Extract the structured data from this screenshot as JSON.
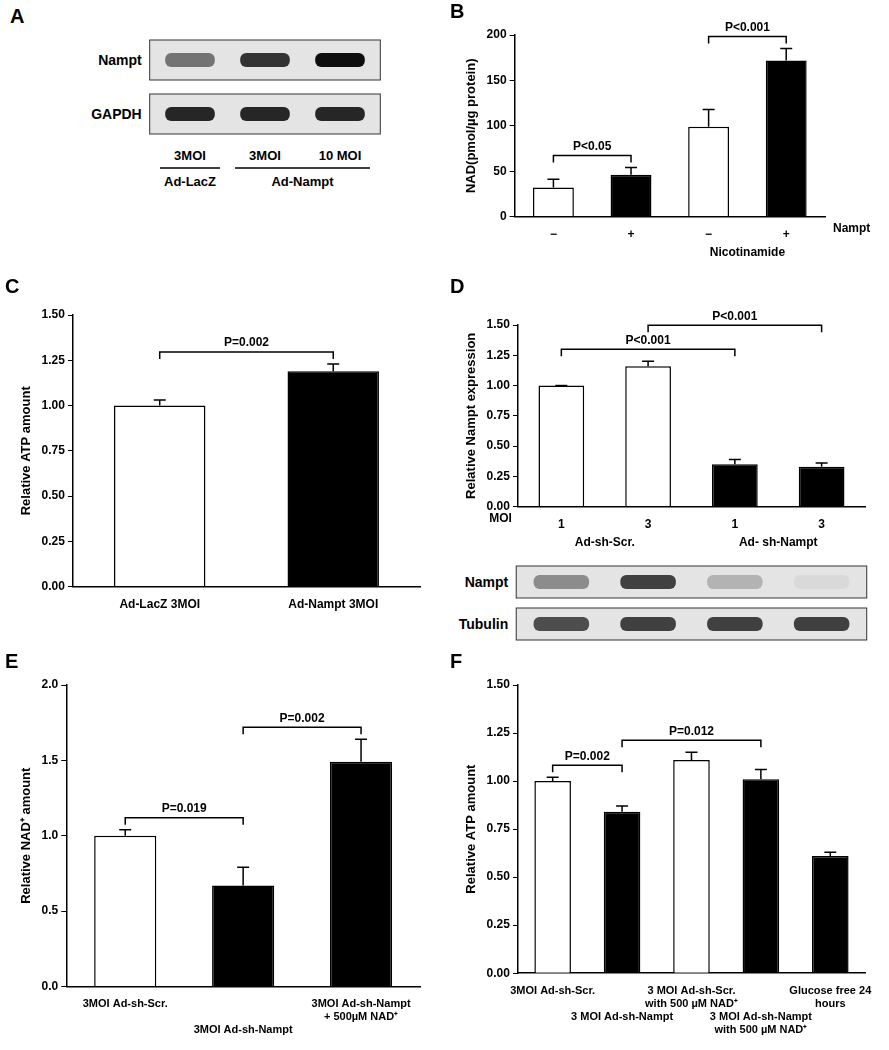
{
  "chart_data": [
    {
      "panel": "A",
      "type": "blot",
      "rows": [
        {
          "label": "Nampt",
          "intensity": [
            0.55,
            0.8,
            0.95
          ]
        },
        {
          "label": "GAPDH",
          "intensity": [
            0.85,
            0.85,
            0.85
          ]
        }
      ],
      "lanes": [
        "3MOI",
        "3MOI",
        "10 MOI"
      ],
      "groups": [
        {
          "label": "Ad-LacZ",
          "from": 0,
          "to": 0
        },
        {
          "label": "Ad-Nampt",
          "from": 1,
          "to": 2
        }
      ]
    },
    {
      "panel": "B",
      "type": "bar",
      "categories": [
        "−",
        "+",
        "−",
        "+"
      ],
      "values": [
        32,
        46,
        99,
        172
      ],
      "errors": [
        9,
        8,
        19,
        13
      ],
      "colors": [
        "#ffffff",
        "#000000",
        "#ffffff",
        "#000000"
      ],
      "y_label": "NAD(pmol/µg protein)",
      "x_label": "Nampt",
      "groups": [
        {
          "label": "Nicotinamide",
          "from": 2,
          "to": 3
        }
      ],
      "ylim": [
        0,
        200
      ],
      "yticks": [
        0,
        50,
        100,
        150,
        200
      ],
      "annotations": [
        {
          "text": "P<0.05",
          "from": 0,
          "to": 1
        },
        {
          "text": "P<0.001",
          "from": 2,
          "to": 3
        }
      ]
    },
    {
      "panel": "C",
      "type": "bar",
      "categories": [
        "Ad-LacZ 3MOI",
        "Ad-Nampt 3MOI"
      ],
      "values": [
        1.0,
        1.19
      ],
      "errors": [
        0.03,
        0.04
      ],
      "colors": [
        "#ffffff",
        "#000000"
      ],
      "y_label": "Relative ATP amount",
      "ylim": [
        0,
        1.5
      ],
      "yticks": [
        {
          "value": 0,
          "label": "0.00"
        },
        0.25,
        {
          "value": 0.5,
          "label": "0.50"
        },
        0.75,
        {
          "value": 1,
          "label": "1.00"
        },
        1.25,
        {
          "value": 1.5,
          "label": "1.50"
        }
      ],
      "annotations": [
        {
          "text": "P=0.002",
          "from": 0,
          "to": 1
        }
      ]
    },
    {
      "panel": "D",
      "type": "bar",
      "categories": [
        "1",
        "3",
        "1",
        "3"
      ],
      "tick_title": "MOI",
      "values": [
        1.0,
        1.16,
        0.35,
        0.33
      ],
      "errors": [
        0,
        0.04,
        0.04,
        0.03
      ],
      "colors": [
        "#ffffff",
        "#ffffff",
        "#000000",
        "#000000"
      ],
      "y_label": "Relative Nampt expression",
      "groups": [
        {
          "label": "Ad-sh-Scr.",
          "from": 0,
          "to": 1
        },
        {
          "label": "Ad- sh-Nampt",
          "from": 2,
          "to": 3
        }
      ],
      "ylim": [
        0,
        1.5
      ],
      "yticks": [
        {
          "value": 0,
          "label": "0.00"
        },
        0.25,
        {
          "value": 0.5,
          "label": "0.50"
        },
        0.75,
        {
          "value": 1,
          "label": "1.00"
        },
        1.25,
        {
          "value": 1.5,
          "label": "1.50"
        }
      ],
      "annotations": [
        {
          "text": "P<0.001",
          "from": 0,
          "to": 2
        },
        {
          "text": "P<0.001",
          "from": 1,
          "to": 3
        }
      ],
      "blot": {
        "rows": [
          {
            "label": "Nampt",
            "intensity": [
              0.45,
              0.75,
              0.3,
              0.15
            ]
          },
          {
            "label": "Tubulin",
            "intensity": [
              0.7,
              0.75,
              0.75,
              0.75
            ]
          }
        ]
      }
    },
    {
      "panel": "E",
      "type": "bar",
      "categories": [
        "3MOI Ad-sh-Scr.",
        "3MOI Ad-sh-Nampt",
        "3MOI Ad-sh-Nampt + 500µM NAD⁺"
      ],
      "values": [
        1.0,
        0.67,
        1.49
      ],
      "errors": [
        0.04,
        0.12,
        0.15
      ],
      "colors": [
        "#ffffff",
        "#000000",
        "#000000"
      ],
      "y_label": "Relative NAD⁺ amount",
      "ylim": [
        0,
        2
      ],
      "yticks": [
        {
          "value": 0,
          "label": "0.0"
        },
        0.5,
        {
          "value": 1,
          "label": "1.0"
        },
        1.5,
        {
          "value": 2,
          "label": "2.0"
        }
      ],
      "annotations": [
        {
          "text": "P=0.019",
          "from": 0,
          "to": 1
        },
        {
          "text": "P=0.002",
          "from": 1,
          "to": 2
        }
      ]
    },
    {
      "panel": "F",
      "type": "bar",
      "categories": [
        "3MOI Ad-sh-Scr.",
        "3 MOI Ad-sh-Nampt",
        "3 MOI Ad-sh-Scr. with 500 µM NAD⁺",
        "3 MOI Ad-sh-Nampt with 500 µM NAD⁺",
        "Glucose free 24 hours"
      ],
      "values": [
        1.0,
        0.84,
        1.11,
        1.01,
        0.61
      ],
      "errors": [
        0.02,
        0.03,
        0.04,
        0.05,
        0.02
      ],
      "colors": [
        "#ffffff",
        "#000000",
        "#ffffff",
        "#000000",
        "#000000"
      ],
      "y_label": "Relative ATP amount",
      "ylim": [
        0,
        1.5
      ],
      "yticks": [
        {
          "value": 0,
          "label": "0.00"
        },
        0.25,
        {
          "value": 0.5,
          "label": "0.50"
        },
        0.75,
        {
          "value": 1,
          "label": "1.00"
        },
        1.25,
        {
          "value": 1.5,
          "label": "1.50"
        }
      ],
      "annotations": [
        {
          "text": "P=0.002",
          "from": 0,
          "to": 1
        },
        {
          "text": "P=0.012",
          "from": 1,
          "to": 3
        }
      ]
    }
  ]
}
